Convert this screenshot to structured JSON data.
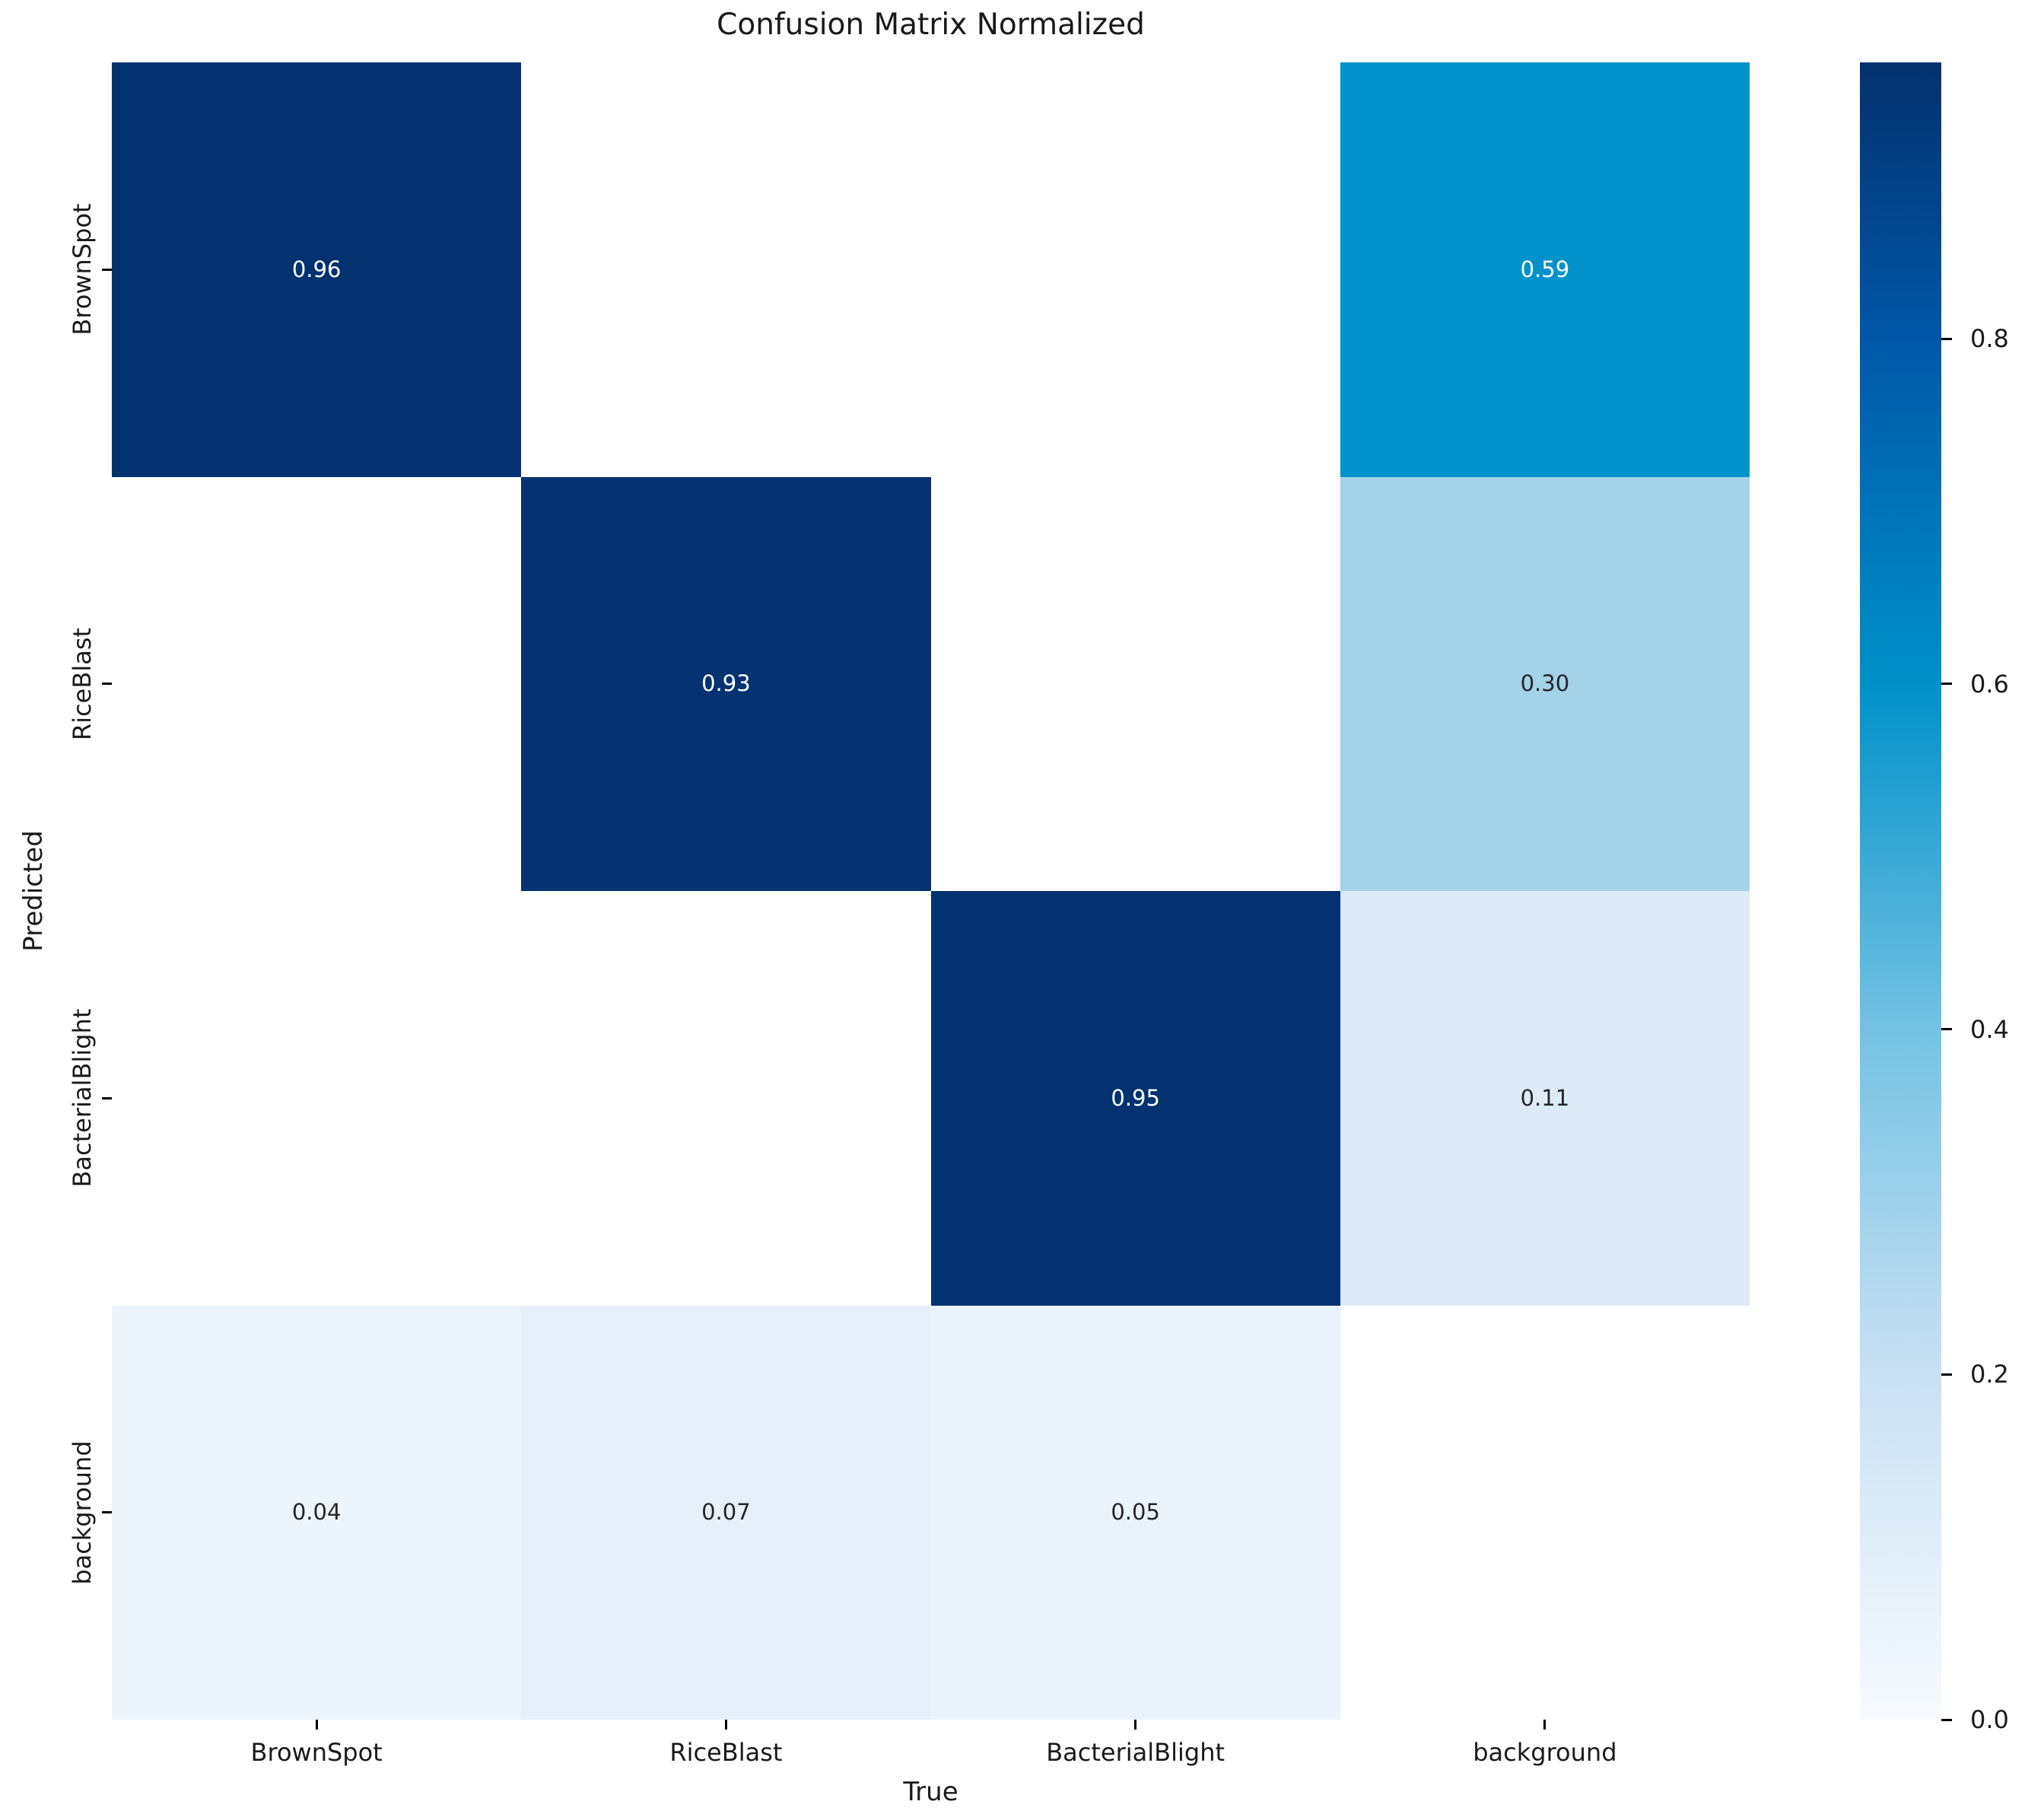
{
  "chart_data": {
    "type": "heatmap",
    "title": "Confusion Matrix Normalized",
    "xlabel": "True",
    "ylabel": "Predicted",
    "x_categories": [
      "BrownSpot",
      "RiceBlast",
      "BacterialBlight",
      "background"
    ],
    "y_categories": [
      "BrownSpot",
      "RiceBlast",
      "BacterialBlight",
      "background"
    ],
    "matrix": [
      [
        0.96,
        null,
        null,
        0.59
      ],
      [
        null,
        0.93,
        null,
        0.3
      ],
      [
        null,
        null,
        0.95,
        0.11
      ],
      [
        0.04,
        0.07,
        0.05,
        null
      ]
    ],
    "annotations": [
      [
        "0.96",
        "",
        "",
        "0.59"
      ],
      [
        "",
        "0.93",
        "",
        "0.30"
      ],
      [
        "",
        "",
        "0.95",
        "0.11"
      ],
      [
        "0.04",
        "0.07",
        "0.05",
        ""
      ]
    ],
    "cell_colors": [
      [
        "#043170",
        "#ffffff",
        "#ffffff",
        "#0292cb"
      ],
      [
        "#ffffff",
        "#053371",
        "#ffffff",
        "#a3d2e9"
      ],
      [
        "#ffffff",
        "#ffffff",
        "#04316f",
        "#ddeaf7"
      ],
      [
        "#ecf4fc",
        "#e6f0fa",
        "#eaf3fb",
        "#ffffff"
      ]
    ],
    "cell_text_colors": [
      [
        "#ffffff",
        "",
        "",
        "#ffffff"
      ],
      [
        "",
        "#ffffff",
        "",
        "#262626"
      ],
      [
        "",
        "",
        "#ffffff",
        "#262626"
      ],
      [
        "#262626",
        "#262626",
        "#262626",
        ""
      ]
    ],
    "axis_ranges": {
      "vmin": 0.0,
      "vmax": 0.96
    },
    "grid": false,
    "legend_position": "colorbar-right",
    "colorbar": {
      "tick_labels": [
        "0.0",
        "0.2",
        "0.4",
        "0.6",
        "0.8"
      ],
      "tick_values": [
        0.0,
        0.2,
        0.4,
        0.6,
        0.8
      ],
      "gradient_stops": [
        {
          "pos": 0.0,
          "color": "#f7fbff"
        },
        {
          "pos": 0.2083,
          "color": "#c9e0f3"
        },
        {
          "pos": 0.4167,
          "color": "#74c2e3"
        },
        {
          "pos": 0.625,
          "color": "#0091c9"
        },
        {
          "pos": 0.8333,
          "color": "#0057a7"
        },
        {
          "pos": 1.0,
          "color": "#04316e"
        }
      ]
    },
    "colors": {
      "background": "#ffffff",
      "text": "#1a1a1a",
      "tick": "#000000"
    }
  }
}
